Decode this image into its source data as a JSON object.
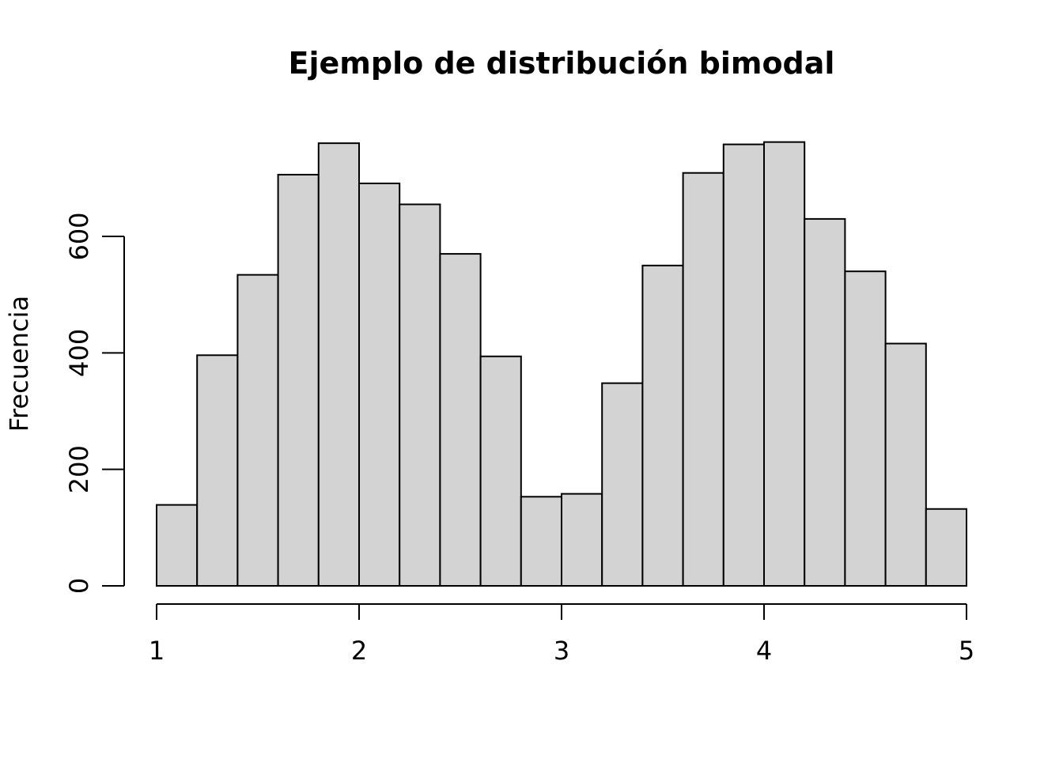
{
  "chart_data": {
    "type": "bar",
    "title": "Ejemplo de distribución bimodal",
    "xlabel": "",
    "ylabel": "Frecuencia",
    "bar_color": "#d3d3d3",
    "edge_color": "#000000",
    "bin_width": 0.2,
    "bin_start": 1,
    "values": [
      139,
      396,
      534,
      706,
      760,
      691,
      655,
      570,
      394,
      153,
      158,
      348,
      550,
      709,
      758,
      762,
      630,
      540,
      416,
      132
    ],
    "xlim": [
      1,
      5
    ],
    "ylim": [
      0,
      600
    ],
    "x_ticks": [
      {
        "value": 1,
        "label": "1"
      },
      {
        "value": 2,
        "label": "2"
      },
      {
        "value": 3,
        "label": "3"
      },
      {
        "value": 4,
        "label": "4"
      },
      {
        "value": 5,
        "label": "5"
      }
    ],
    "y_ticks": [
      {
        "value": 0,
        "label": "0"
      },
      {
        "value": 200,
        "label": "200"
      },
      {
        "value": 400,
        "label": "400"
      },
      {
        "value": 600,
        "label": "600"
      }
    ],
    "grid": false,
    "legend": "none"
  }
}
